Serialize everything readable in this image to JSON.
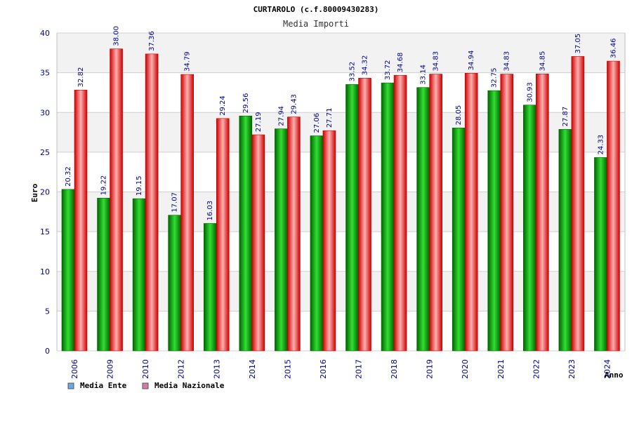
{
  "colors": {
    "ente_dark": "#006600",
    "ente_light": "#33dd33",
    "naz_dark": "#cc0000",
    "naz_light": "#ffb0b0",
    "legend_ente": "#6aa6e8",
    "legend_naz": "#d97aa6",
    "band": "#f2f2f2",
    "grid": "#d0d0d0"
  },
  "chart_data": {
    "type": "bar",
    "title": "CURTAROLO (c.f.80009430283)",
    "subtitle": "Media Importi",
    "xlabel": "Anno",
    "ylabel": "Euro",
    "ylim": [
      0,
      40
    ],
    "yticks": [
      0,
      5,
      10,
      15,
      20,
      25,
      30,
      35,
      40
    ],
    "grid": true,
    "legend_position": "bottom-left",
    "categories": [
      "2006",
      "2009",
      "2010",
      "2012",
      "2013",
      "2014",
      "2015",
      "2016",
      "2017",
      "2018",
      "2019",
      "2020",
      "2021",
      "2022",
      "2023",
      "2024"
    ],
    "series": [
      {
        "name": "Media Ente",
        "values": [
          20.32,
          19.22,
          19.15,
          17.07,
          16.03,
          29.56,
          27.94,
          27.06,
          33.52,
          33.72,
          33.14,
          28.05,
          32.75,
          30.93,
          27.87,
          24.33
        ],
        "labels": [
          "20.32",
          "19.22",
          "19.15",
          "17.07",
          "16.03",
          "29.56",
          "27.94",
          "27.06",
          "33.52",
          "33.72",
          "33.14",
          "28.05",
          "32.75",
          "30.93",
          "27.87",
          "24.33"
        ]
      },
      {
        "name": "Media Nazionale",
        "values": [
          32.82,
          38.0,
          37.36,
          34.79,
          29.24,
          27.19,
          29.43,
          27.71,
          34.32,
          34.68,
          34.83,
          34.94,
          34.83,
          34.85,
          37.05,
          36.46
        ],
        "labels": [
          "32.82",
          "38.00",
          "37.36",
          "34.79",
          "29.24",
          "27.19",
          "29.43",
          "27.71",
          "34.32",
          "34.68",
          "34.83",
          "34.94",
          "34.83",
          "34.85",
          "37.05",
          "36.46"
        ]
      }
    ]
  }
}
